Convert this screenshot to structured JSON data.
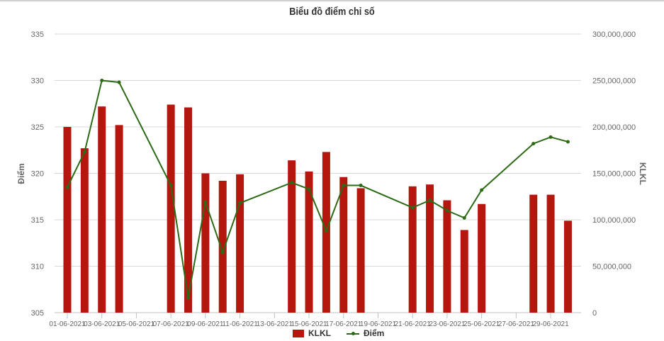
{
  "chart_data": {
    "type": "bar+line",
    "title": "Biểu đồ điểm chỉ số",
    "xlabel": "",
    "ylabel_left": "Điểm",
    "ylabel_right": "KLKL",
    "ylim_left": [
      305,
      335
    ],
    "ylim_right": [
      0,
      300000000
    ],
    "left_ticks": [
      "305",
      "310",
      "315",
      "320",
      "325",
      "330",
      "335"
    ],
    "right_ticks": [
      "0",
      "50,000,000",
      "100,000,000",
      "150,000,000",
      "200,000,000",
      "250,000,000",
      "300,000,000"
    ],
    "x_tick_labels": [
      "01-06-2021",
      "03-06-2021",
      "05-06-2021",
      "07-06-2021",
      "09-06-2021",
      "11-06-2021",
      "13-06-2021",
      "15-06-2021",
      "17-06-2021",
      "19-06-2021",
      "21-06-2021",
      "23-06-2021",
      "25-06-2021",
      "27-06-2021",
      "29-06-2021"
    ],
    "grid": true,
    "legend_position": "bottom",
    "categories": [
      "01-06-2021",
      "02-06-2021",
      "03-06-2021",
      "04-06-2021",
      "07-06-2021",
      "08-06-2021",
      "09-06-2021",
      "10-06-2021",
      "11-06-2021",
      "14-06-2021",
      "15-06-2021",
      "16-06-2021",
      "17-06-2021",
      "18-06-2021",
      "21-06-2021",
      "22-06-2021",
      "23-06-2021",
      "24-06-2021",
      "25-06-2021",
      "28-06-2021",
      "29-06-2021",
      "30-06-2021"
    ],
    "day_index": [
      1,
      2,
      3,
      4,
      7,
      8,
      9,
      10,
      11,
      14,
      15,
      16,
      17,
      18,
      21,
      22,
      23,
      24,
      25,
      28,
      29,
      30
    ],
    "series": [
      {
        "name": "KLKL",
        "type": "bar",
        "axis": "right",
        "color": "#b5160e",
        "values": [
          200000000,
          177000000,
          222000000,
          202000000,
          224000000,
          221000000,
          150000000,
          142000000,
          149000000,
          164000000,
          152000000,
          173000000,
          146000000,
          134000000,
          136000000,
          138000000,
          121000000,
          89000000,
          117000000,
          127000000,
          127000000,
          99000000
        ]
      },
      {
        "name": "Điểm",
        "type": "line",
        "axis": "left",
        "color": "#2d6a16",
        "values": [
          318.5,
          322.3,
          330.0,
          329.8,
          318.7,
          306.6,
          316.9,
          311.5,
          316.8,
          319.0,
          318.3,
          313.8,
          318.7,
          318.7,
          316.3,
          317.1,
          316.0,
          315.2,
          318.2,
          323.2,
          323.9,
          323.4
        ]
      }
    ]
  },
  "legend": {
    "bar_label": "KLKL",
    "line_label": "Điểm"
  }
}
